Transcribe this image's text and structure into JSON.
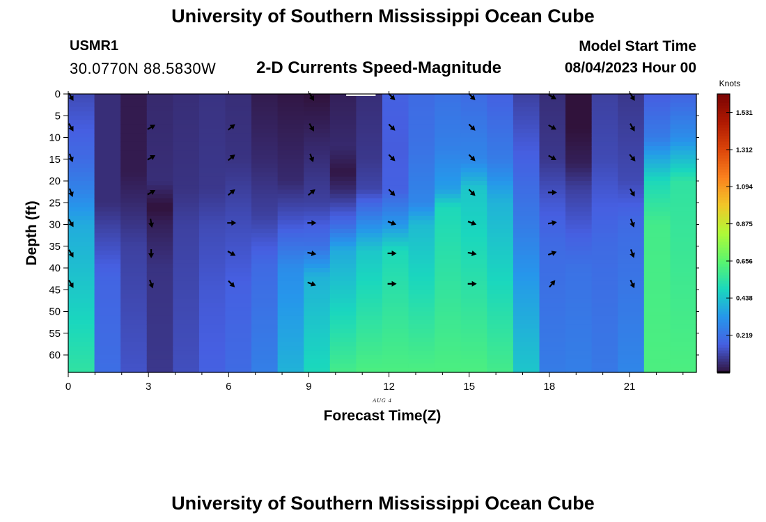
{
  "header": {
    "title": "University of Southern Mississippi Ocean Cube",
    "station": "USMR1",
    "coordinates": "30.0770N  88.5830W",
    "subtitle": "2-D Currents Speed-Magnitude",
    "start_label": "Model Start Time",
    "start_value": "08/04/2023 Hour 00"
  },
  "footer": {
    "title": "University of Southern Mississippi Ocean Cube"
  },
  "colors": {
    "arrow": "#000000",
    "frame": "#000000",
    "missing": "#ffffff"
  },
  "chart_data": {
    "type": "heatmap",
    "title": "2-D Currents Speed-Magnitude",
    "xlabel": "Forecast Time(Z)",
    "ylabel": "Depth (ft)",
    "date_annotation": "AUG 4",
    "x_ticks": [
      0,
      3,
      6,
      9,
      12,
      15,
      18,
      21
    ],
    "y_ticks": [
      0,
      5,
      10,
      15,
      20,
      25,
      30,
      35,
      40,
      45,
      50,
      55,
      60
    ],
    "xlim": [
      0,
      23.5
    ],
    "ylim": [
      0,
      64
    ],
    "y_inverted": true,
    "colorbar": {
      "unit": "Knots",
      "min": 0,
      "max": 1.64,
      "ticks": [
        0.219,
        0.438,
        0.656,
        0.875,
        1.094,
        1.312,
        1.531
      ]
    },
    "speed_hourly": [
      {
        "hour": 0,
        "profile": [
          [
            0,
            0.12
          ],
          [
            15,
            0.2
          ],
          [
            22,
            0.27
          ],
          [
            30,
            0.38
          ],
          [
            64,
            0.55
          ]
        ]
      },
      {
        "hour": 1,
        "profile": [
          [
            0,
            0.06
          ],
          [
            25,
            0.06
          ],
          [
            30,
            0.1
          ],
          [
            42,
            0.18
          ],
          [
            64,
            0.21
          ]
        ]
      },
      {
        "hour": 2,
        "profile": [
          [
            0,
            0.02
          ],
          [
            18,
            0.02
          ],
          [
            25,
            0.05
          ],
          [
            35,
            0.1
          ],
          [
            64,
            0.14
          ]
        ]
      },
      {
        "hour": 3,
        "profile": [
          [
            0,
            0.05
          ],
          [
            20,
            0.06
          ],
          [
            26,
            0.0
          ],
          [
            30,
            0.03
          ],
          [
            40,
            0.07
          ],
          [
            64,
            0.08
          ]
        ]
      },
      {
        "hour": 4,
        "profile": [
          [
            0,
            0.06
          ],
          [
            22,
            0.07
          ],
          [
            30,
            0.1
          ],
          [
            40,
            0.11
          ],
          [
            64,
            0.13
          ]
        ]
      },
      {
        "hour": 5,
        "profile": [
          [
            0,
            0.07
          ],
          [
            22,
            0.08
          ],
          [
            30,
            0.12
          ],
          [
            45,
            0.15
          ],
          [
            64,
            0.17
          ]
        ]
      },
      {
        "hour": 6,
        "profile": [
          [
            0,
            0.06
          ],
          [
            15,
            0.07
          ],
          [
            28,
            0.12
          ],
          [
            45,
            0.17
          ],
          [
            64,
            0.2
          ]
        ]
      },
      {
        "hour": 7,
        "profile": [
          [
            0,
            0.02
          ],
          [
            15,
            0.05
          ],
          [
            28,
            0.1
          ],
          [
            40,
            0.2
          ],
          [
            64,
            0.26
          ]
        ]
      },
      {
        "hour": 8,
        "profile": [
          [
            0,
            0.01
          ],
          [
            20,
            0.05
          ],
          [
            30,
            0.15
          ],
          [
            40,
            0.3
          ],
          [
            64,
            0.4
          ]
        ]
      },
      {
        "hour": 9,
        "profile": [
          [
            0,
            0.0
          ],
          [
            10,
            0.04
          ],
          [
            25,
            0.1
          ],
          [
            30,
            0.16
          ],
          [
            35,
            0.22
          ],
          [
            42,
            0.4
          ],
          [
            64,
            0.5
          ]
        ]
      },
      {
        "hour": 10,
        "profile": [
          [
            0,
            0.03
          ],
          [
            12,
            0.05
          ],
          [
            18,
            0.01
          ],
          [
            22,
            0.05
          ],
          [
            30,
            0.2
          ],
          [
            36,
            0.38
          ],
          [
            64,
            0.6
          ]
        ]
      },
      {
        "hour": 11,
        "profile": [
          [
            0,
            0.06
          ],
          [
            15,
            0.08
          ],
          [
            22,
            0.11
          ],
          [
            30,
            0.3
          ],
          [
            36,
            0.45
          ],
          [
            64,
            0.62
          ]
        ]
      },
      {
        "hour": 12,
        "profile": [
          [
            0,
            0.17
          ],
          [
            12,
            0.16
          ],
          [
            22,
            0.17
          ],
          [
            30,
            0.33
          ],
          [
            36,
            0.5
          ],
          [
            64,
            0.62
          ]
        ]
      },
      {
        "hour": 13,
        "profile": [
          [
            0,
            0.2
          ],
          [
            12,
            0.22
          ],
          [
            25,
            0.28
          ],
          [
            30,
            0.42
          ],
          [
            64,
            0.62
          ]
        ]
      },
      {
        "hour": 14,
        "profile": [
          [
            0,
            0.22
          ],
          [
            12,
            0.26
          ],
          [
            22,
            0.35
          ],
          [
            26,
            0.5
          ],
          [
            64,
            0.62
          ]
        ]
      },
      {
        "hour": 15,
        "profile": [
          [
            0,
            0.2
          ],
          [
            15,
            0.28
          ],
          [
            22,
            0.45
          ],
          [
            64,
            0.62
          ]
        ]
      },
      {
        "hour": 16,
        "profile": [
          [
            0,
            0.17
          ],
          [
            15,
            0.25
          ],
          [
            25,
            0.4
          ],
          [
            64,
            0.6
          ]
        ]
      },
      {
        "hour": 17,
        "profile": [
          [
            0,
            0.1
          ],
          [
            15,
            0.17
          ],
          [
            30,
            0.25
          ],
          [
            45,
            0.35
          ],
          [
            64,
            0.45
          ]
        ]
      },
      {
        "hour": 18,
        "profile": [
          [
            0,
            0.06
          ],
          [
            15,
            0.08
          ],
          [
            25,
            0.15
          ],
          [
            35,
            0.2
          ],
          [
            64,
            0.25
          ]
        ]
      },
      {
        "hour": 19,
        "profile": [
          [
            0,
            0.0
          ],
          [
            8,
            0.0
          ],
          [
            16,
            0.03
          ],
          [
            22,
            0.1
          ],
          [
            30,
            0.15
          ],
          [
            40,
            0.22
          ],
          [
            64,
            0.26
          ]
        ]
      },
      {
        "hour": 20,
        "profile": [
          [
            0,
            0.1
          ],
          [
            15,
            0.12
          ],
          [
            25,
            0.16
          ],
          [
            35,
            0.2
          ],
          [
            64,
            0.24
          ]
        ]
      },
      {
        "hour": 21,
        "profile": [
          [
            0,
            0.08
          ],
          [
            20,
            0.12
          ],
          [
            30,
            0.2
          ],
          [
            64,
            0.28
          ]
        ]
      },
      {
        "hour": 22,
        "profile": [
          [
            0,
            0.16
          ],
          [
            10,
            0.25
          ],
          [
            20,
            0.5
          ],
          [
            30,
            0.6
          ],
          [
            64,
            0.62
          ]
        ]
      },
      {
        "hour": 23,
        "profile": [
          [
            0,
            0.18
          ],
          [
            10,
            0.3
          ],
          [
            20,
            0.55
          ],
          [
            64,
            0.62
          ]
        ]
      }
    ],
    "surface_missing": [
      {
        "start_hour": 10.4,
        "end_hour": 11.5
      }
    ],
    "vector_hours": [
      0,
      3,
      6,
      9,
      12,
      15,
      18,
      21
    ],
    "vector_depths": [
      0,
      7,
      14,
      22,
      29,
      36,
      43
    ],
    "vector_directions_deg": [
      [
        -60,
        -60,
        -70,
        -70,
        -60,
        -60,
        -60
      ],
      [
        null,
        30,
        30,
        30,
        -80,
        -90,
        -70
      ],
      [
        null,
        40,
        40,
        40,
        0,
        -30,
        -45
      ],
      [
        -60,
        -60,
        -70,
        40,
        0,
        -10,
        -20
      ],
      [
        -45,
        -45,
        -45,
        -45,
        -20,
        0,
        0
      ],
      [
        -45,
        -45,
        -45,
        -45,
        -20,
        -10,
        0
      ],
      [
        -30,
        -30,
        -30,
        0,
        10,
        20,
        50
      ],
      [
        -60,
        -60,
        -50,
        -60,
        -70,
        -70,
        -65
      ]
    ]
  }
}
